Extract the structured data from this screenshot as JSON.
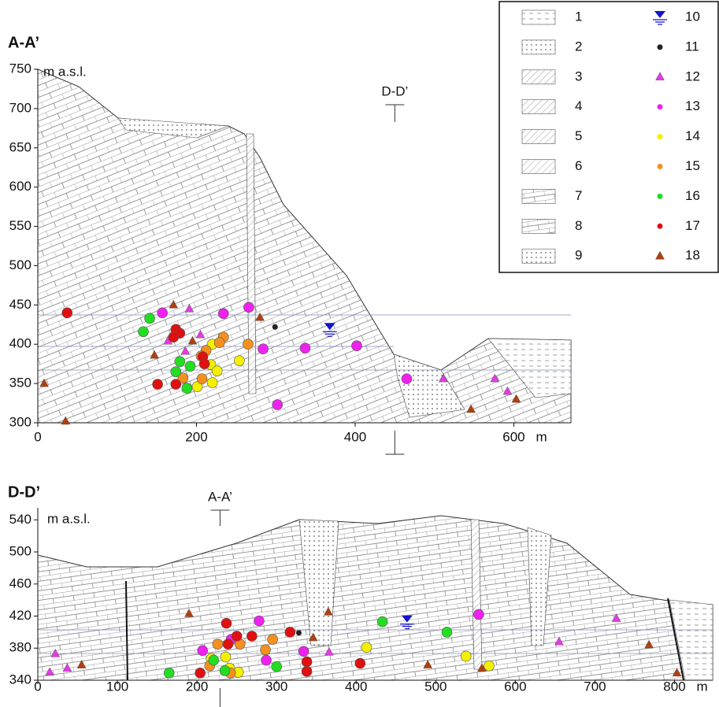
{
  "chart_data": [
    {
      "type": "scatter",
      "title": "A-A’",
      "y_label": "m a.s.l.",
      "x_label": "m",
      "section_marker": {
        "label": "D-D’",
        "x": 450
      },
      "xlim": [
        0,
        672
      ],
      "xticks": [
        0,
        200,
        400,
        600
      ],
      "ylim": [
        300,
        750
      ],
      "yticks": [
        300,
        350,
        400,
        450,
        500,
        550,
        600,
        650,
        700,
        750
      ],
      "series": [
        {
          "name": "10",
          "color": "#1414d2",
          "marker": "water",
          "x": [
            368
          ],
          "values": [
            419
          ]
        },
        {
          "name": "11",
          "color": "#222222",
          "marker": "dot",
          "x": [
            299
          ],
          "values": [
            422
          ]
        },
        {
          "name": "12",
          "color": "#e23ce2",
          "marker": "triangle",
          "x": [
            191,
            205,
            164,
            186,
            511,
            576,
            592
          ],
          "values": [
            445,
            412,
            404,
            391,
            356,
            356,
            340
          ]
        },
        {
          "name": "13",
          "color": "#ee22ee",
          "marker": "circle",
          "x": [
            157,
            234,
            266,
            284,
            337,
            402,
            465,
            302
          ],
          "values": [
            440,
            439,
            447,
            394,
            395,
            398,
            356,
            323
          ]
        },
        {
          "name": "14",
          "color": "#f4f000",
          "marker": "circle",
          "x": [
            220,
            254,
            218,
            226,
            220,
            201
          ],
          "values": [
            400,
            379,
            374,
            366,
            351,
            346
          ]
        },
        {
          "name": "15",
          "color": "#f5901e",
          "marker": "circle",
          "x": [
            234,
            229,
            212,
            206,
            207,
            183,
            265
          ],
          "values": [
            409,
            402,
            392,
            385,
            356,
            357,
            400
          ]
        },
        {
          "name": "16",
          "color": "#22dd22",
          "marker": "circle",
          "x": [
            141,
            133,
            179,
            174,
            192,
            188
          ],
          "values": [
            433,
            416,
            378,
            365,
            372,
            344
          ]
        },
        {
          "name": "17",
          "color": "#e01010",
          "marker": "circle",
          "x": [
            37,
            174,
            179,
            171,
            208,
            210,
            151,
            174
          ],
          "values": [
            440,
            419,
            414,
            409,
            384,
            375,
            349,
            349
          ]
        },
        {
          "name": "18",
          "color": "#b0400f",
          "marker": "triangle",
          "x": [
            171,
            280,
            195,
            147,
            8,
            35,
            546,
            603
          ],
          "values": [
            450,
            434,
            404,
            386,
            350,
            302,
            317,
            330
          ]
        }
      ]
    },
    {
      "type": "scatter",
      "title": "D-D’",
      "y_label": "m a.s.l.",
      "x_label": "m",
      "section_marker": {
        "label": "A-A’",
        "x": 229
      },
      "xlim": [
        0,
        848
      ],
      "xticks": [
        0,
        100,
        200,
        300,
        400,
        500,
        600,
        700,
        800
      ],
      "ylim": [
        340,
        555
      ],
      "yticks": [
        340,
        380,
        420,
        460,
        500,
        540
      ],
      "series": [
        {
          "name": "10",
          "color": "#1414d2",
          "marker": "water",
          "x": [
            464
          ],
          "values": [
            413
          ]
        },
        {
          "name": "11",
          "color": "#222222",
          "marker": "dot",
          "x": [
            328
          ],
          "values": [
            399
          ]
        },
        {
          "name": "12",
          "color": "#e23ce2",
          "marker": "triangle",
          "x": [
            22,
            15,
            37,
            366,
            655,
            727
          ],
          "values": [
            373,
            350,
            355,
            375,
            388,
            417
          ]
        },
        {
          "name": "13",
          "color": "#ee22ee",
          "marker": "circle",
          "x": [
            207,
            278,
            287,
            334,
            243,
            554
          ],
          "values": [
            377,
            414,
            365,
            376,
            391,
            422
          ]
        },
        {
          "name": "14",
          "color": "#f4f000",
          "marker": "circle",
          "x": [
            236,
            241,
            252,
            413,
            538,
            567,
            218
          ],
          "values": [
            369,
            355,
            350,
            381,
            370,
            358,
            367
          ]
        },
        {
          "name": "15",
          "color": "#f5901e",
          "marker": "circle",
          "x": [
            226,
            295,
            286,
            254,
            242,
            216
          ],
          "values": [
            385,
            391,
            378,
            385,
            349,
            358
          ]
        },
        {
          "name": "16",
          "color": "#22dd22",
          "marker": "circle",
          "x": [
            165,
            221,
            235,
            300,
            433,
            514
          ],
          "values": [
            349,
            365,
            352,
            357,
            413,
            400
          ]
        },
        {
          "name": "17",
          "color": "#e01010",
          "marker": "circle",
          "x": [
            237,
            250,
            269,
            317,
            338,
            338,
            405,
            204,
            239
          ],
          "values": [
            411,
            395,
            395,
            400,
            363,
            351,
            361,
            349,
            385
          ]
        },
        {
          "name": "18",
          "color": "#b0400f",
          "marker": "triangle",
          "x": [
            55,
            190,
            365,
            346,
            490,
            558,
            768,
            803
          ],
          "values": [
            359,
            423,
            425,
            393,
            359,
            355,
            384,
            349
          ]
        }
      ]
    }
  ],
  "pattern_legend": [
    "1",
    "2",
    "3",
    "4",
    "5",
    "6",
    "7",
    "8",
    "9"
  ]
}
